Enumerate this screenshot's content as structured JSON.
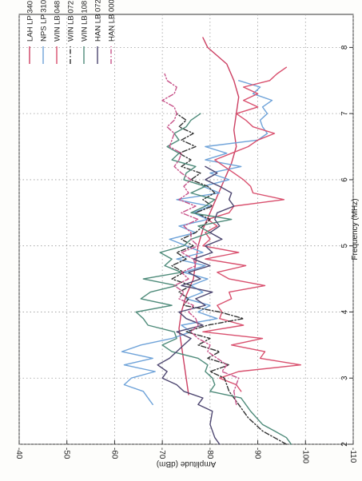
{
  "chart_data": {
    "type": "line",
    "orientation": "rotated-90-clockwise",
    "xlabel": "Frequency (MHz)",
    "ylabel": "Amplitude (dBm)",
    "xlim": [
      2,
      8.5
    ],
    "ylim": [
      -110,
      -40
    ],
    "xticks": [
      "2",
      "3",
      "4",
      "5",
      "6",
      "7",
      "8"
    ],
    "yticks": [
      "-40",
      "-50",
      "-60",
      "-70",
      "-80",
      "-90",
      "-100",
      "-110"
    ],
    "grid": true,
    "legend_position": "top-left",
    "series": [
      {
        "name": "LAH LP 340",
        "color": "#cc3f62",
        "dash": "solid",
        "points": [
          [
            2.75,
            -75.5
          ],
          [
            3.0,
            -75.0
          ],
          [
            3.25,
            -74.5
          ],
          [
            3.5,
            -74.0
          ],
          [
            3.75,
            -73.5
          ],
          [
            4.0,
            -74.0
          ],
          [
            4.25,
            -75.0
          ],
          [
            4.5,
            -76.5
          ],
          [
            4.75,
            -77.0
          ],
          [
            5.0,
            -77.5
          ],
          [
            5.25,
            -78.5
          ],
          [
            5.5,
            -80.0
          ],
          [
            5.75,
            -81.5
          ],
          [
            6.0,
            -83.0
          ],
          [
            6.25,
            -84.5
          ],
          [
            6.5,
            -85.5
          ],
          [
            6.75,
            -85.0
          ],
          [
            7.0,
            -85.5
          ],
          [
            7.25,
            -86.0
          ],
          [
            7.5,
            -85.0
          ],
          [
            7.75,
            -83.5
          ],
          [
            8.0,
            -79.5
          ],
          [
            8.15,
            -78.5
          ]
        ]
      },
      {
        "name": "NPS LP 310",
        "color": "#6fa3d9",
        "dash": "solid",
        "points": [
          [
            2.6,
            -68.0
          ],
          [
            2.7,
            -67.0
          ],
          [
            2.8,
            -66.0
          ],
          [
            2.9,
            -62.0
          ],
          [
            3.0,
            -63.5
          ],
          [
            3.1,
            -68.5
          ],
          [
            3.2,
            -62.0
          ],
          [
            3.3,
            -68.0
          ],
          [
            3.4,
            -61.5
          ],
          [
            3.5,
            -65.5
          ],
          [
            3.6,
            -72.0
          ],
          [
            3.7,
            -76.0
          ],
          [
            3.8,
            -74.0
          ],
          [
            3.9,
            -81.5
          ],
          [
            4.0,
            -77.5
          ],
          [
            4.1,
            -80.0
          ],
          [
            4.2,
            -75.0
          ],
          [
            4.3,
            -78.5
          ],
          [
            4.4,
            -76.0
          ],
          [
            4.5,
            -79.5
          ],
          [
            4.6,
            -74.5
          ],
          [
            4.7,
            -79.0
          ],
          [
            4.8,
            -73.0
          ],
          [
            4.9,
            -78.5
          ],
          [
            5.0,
            -75.0
          ],
          [
            5.1,
            -71.5
          ],
          [
            5.2,
            -77.0
          ],
          [
            5.3,
            -73.5
          ],
          [
            5.4,
            -79.5
          ],
          [
            5.5,
            -76.5
          ],
          [
            5.6,
            -80.0
          ],
          [
            5.7,
            -73.0
          ],
          [
            5.8,
            -82.0
          ],
          [
            5.9,
            -78.5
          ],
          [
            6.0,
            -84.0
          ],
          [
            6.1,
            -80.0
          ],
          [
            6.2,
            -86.5
          ],
          [
            6.3,
            -79.0
          ],
          [
            6.4,
            -83.5
          ],
          [
            6.5,
            -79.0
          ],
          [
            6.6,
            -90.0
          ],
          [
            6.7,
            -92.0
          ],
          [
            6.8,
            -91.0
          ],
          [
            6.9,
            -90.5
          ],
          [
            7.0,
            -92.0
          ],
          [
            7.1,
            -91.0
          ],
          [
            7.2,
            -93.0
          ],
          [
            7.3,
            -89.0
          ],
          [
            7.4,
            -90.5
          ],
          [
            7.5,
            -86.0
          ]
        ]
      },
      {
        "name": "WIN LB 048",
        "color": "#d9506e",
        "dash": "solid",
        "points": [
          [
            2.8,
            -86.5
          ],
          [
            2.9,
            -85.5
          ],
          [
            3.0,
            -82.0
          ],
          [
            3.1,
            -86.0
          ],
          [
            3.2,
            -99.0
          ],
          [
            3.3,
            -90.5
          ],
          [
            3.4,
            -91.5
          ],
          [
            3.5,
            -84.5
          ],
          [
            3.6,
            -91.0
          ],
          [
            3.7,
            -78.5
          ],
          [
            3.8,
            -87.0
          ],
          [
            3.9,
            -82.0
          ],
          [
            4.0,
            -82.5
          ],
          [
            4.1,
            -81.5
          ],
          [
            4.2,
            -84.5
          ],
          [
            4.3,
            -84.0
          ],
          [
            4.4,
            -91.5
          ],
          [
            4.5,
            -84.0
          ],
          [
            4.6,
            -81.5
          ],
          [
            4.7,
            -87.5
          ],
          [
            4.8,
            -79.0
          ],
          [
            4.9,
            -86.0
          ],
          [
            5.0,
            -78.5
          ],
          [
            5.1,
            -80.0
          ],
          [
            5.2,
            -79.0
          ],
          [
            5.3,
            -81.5
          ],
          [
            5.4,
            -79.5
          ],
          [
            5.5,
            -84.0
          ],
          [
            5.6,
            -85.0
          ],
          [
            5.7,
            -95.5
          ],
          [
            5.8,
            -89.0
          ],
          [
            5.9,
            -88.5
          ],
          [
            6.0,
            -87.0
          ],
          [
            6.1,
            -85.0
          ],
          [
            6.2,
            -83.0
          ],
          [
            6.3,
            -81.0
          ],
          [
            6.4,
            -84.5
          ],
          [
            6.5,
            -88.0
          ],
          [
            6.6,
            -90.0
          ],
          [
            6.7,
            -93.5
          ],
          [
            6.8,
            -89.0
          ],
          [
            6.9,
            -87.5
          ],
          [
            7.0,
            -85.5
          ],
          [
            7.1,
            -90.0
          ],
          [
            7.2,
            -87.0
          ],
          [
            7.3,
            -90.0
          ],
          [
            7.4,
            -87.0
          ],
          [
            7.5,
            -92.5
          ],
          [
            7.6,
            -94.0
          ],
          [
            7.7,
            -96.0
          ]
        ]
      },
      {
        "name": "WIN LB 072",
        "color": "#333333",
        "dash": "dashdot",
        "points": [
          [
            2.0,
            -96.0
          ],
          [
            2.2,
            -91.0
          ],
          [
            2.4,
            -88.0
          ],
          [
            2.6,
            -86.0
          ],
          [
            2.8,
            -84.0
          ],
          [
            3.0,
            -83.0
          ],
          [
            3.1,
            -80.0
          ],
          [
            3.2,
            -84.0
          ],
          [
            3.3,
            -79.5
          ],
          [
            3.4,
            -82.0
          ],
          [
            3.5,
            -77.5
          ],
          [
            3.6,
            -80.0
          ],
          [
            3.7,
            -75.0
          ],
          [
            3.8,
            -79.5
          ],
          [
            3.9,
            -87.0
          ],
          [
            4.0,
            -82.0
          ],
          [
            4.1,
            -74.5
          ],
          [
            4.2,
            -75.5
          ],
          [
            4.3,
            -73.5
          ],
          [
            4.4,
            -76.0
          ],
          [
            4.5,
            -72.0
          ],
          [
            4.6,
            -74.5
          ],
          [
            4.7,
            -72.0
          ],
          [
            4.8,
            -75.0
          ],
          [
            4.9,
            -73.0
          ],
          [
            5.0,
            -76.5
          ],
          [
            5.1,
            -74.0
          ],
          [
            5.2,
            -77.0
          ],
          [
            5.3,
            -78.5
          ],
          [
            5.4,
            -80.0
          ],
          [
            5.5,
            -77.0
          ],
          [
            5.6,
            -80.5
          ],
          [
            5.7,
            -78.5
          ],
          [
            5.8,
            -81.0
          ],
          [
            5.9,
            -79.5
          ],
          [
            6.0,
            -76.0
          ],
          [
            6.1,
            -78.0
          ],
          [
            6.2,
            -74.0
          ],
          [
            6.3,
            -76.0
          ],
          [
            6.4,
            -73.5
          ],
          [
            6.5,
            -77.0
          ],
          [
            6.6,
            -74.0
          ],
          [
            6.7,
            -76.5
          ],
          [
            6.8,
            -73.5
          ],
          [
            6.9,
            -75.0
          ],
          [
            7.0,
            -73.0
          ]
        ]
      },
      {
        "name": "WIN LB 108",
        "color": "#4e8b7a",
        "dash": "solid",
        "points": [
          [
            2.0,
            -97.0
          ],
          [
            2.1,
            -96.0
          ],
          [
            2.2,
            -93.5
          ],
          [
            2.3,
            -91.0
          ],
          [
            2.5,
            -88.5
          ],
          [
            2.7,
            -86.5
          ],
          [
            2.8,
            -80.0
          ],
          [
            2.9,
            -81.0
          ],
          [
            3.0,
            -80.5
          ],
          [
            3.1,
            -79.0
          ],
          [
            3.2,
            -79.5
          ],
          [
            3.3,
            -77.5
          ],
          [
            3.4,
            -72.0
          ],
          [
            3.5,
            -70.0
          ],
          [
            3.6,
            -73.0
          ],
          [
            3.7,
            -72.5
          ],
          [
            3.8,
            -67.0
          ],
          [
            3.9,
            -66.0
          ],
          [
            4.0,
            -64.5
          ],
          [
            4.1,
            -72.0
          ],
          [
            4.2,
            -65.5
          ],
          [
            4.3,
            -67.5
          ],
          [
            4.4,
            -73.0
          ],
          [
            4.5,
            -66.0
          ],
          [
            4.6,
            -74.0
          ],
          [
            4.7,
            -70.5
          ],
          [
            4.8,
            -72.0
          ],
          [
            4.9,
            -69.5
          ],
          [
            5.0,
            -74.5
          ],
          [
            5.1,
            -76.0
          ],
          [
            5.2,
            -80.0
          ],
          [
            5.3,
            -77.5
          ],
          [
            5.4,
            -84.5
          ],
          [
            5.5,
            -76.0
          ],
          [
            5.6,
            -79.0
          ],
          [
            5.7,
            -81.0
          ],
          [
            5.8,
            -76.0
          ],
          [
            5.9,
            -79.0
          ],
          [
            6.0,
            -74.5
          ],
          [
            6.1,
            -75.0
          ],
          [
            6.2,
            -77.0
          ],
          [
            6.3,
            -72.0
          ],
          [
            6.4,
            -73.5
          ],
          [
            6.5,
            -71.0
          ],
          [
            6.6,
            -73.5
          ],
          [
            6.7,
            -72.5
          ],
          [
            6.8,
            -75.0
          ],
          [
            6.9,
            -76.0
          ],
          [
            7.0,
            -78.0
          ]
        ]
      },
      {
        "name": "HAN LB 072",
        "color": "#4d4670",
        "dash": "solid",
        "points": [
          [
            2.0,
            -82.0
          ],
          [
            2.1,
            -81.0
          ],
          [
            2.3,
            -80.0
          ],
          [
            2.5,
            -80.5
          ],
          [
            2.6,
            -77.5
          ],
          [
            2.7,
            -78.5
          ],
          [
            2.8,
            -74.5
          ],
          [
            2.9,
            -73.0
          ],
          [
            3.0,
            -70.0
          ],
          [
            3.1,
            -71.0
          ],
          [
            3.2,
            -69.0
          ],
          [
            3.3,
            -71.5
          ],
          [
            3.4,
            -73.0
          ],
          [
            3.5,
            -74.5
          ],
          [
            3.6,
            -76.0
          ],
          [
            3.7,
            -73.0
          ],
          [
            3.8,
            -78.5
          ],
          [
            3.9,
            -75.0
          ],
          [
            4.0,
            -73.5
          ],
          [
            4.1,
            -79.0
          ],
          [
            4.2,
            -77.0
          ],
          [
            4.3,
            -80.5
          ],
          [
            4.4,
            -74.0
          ],
          [
            4.5,
            -78.0
          ],
          [
            4.6,
            -75.5
          ],
          [
            4.7,
            -80.0
          ],
          [
            4.8,
            -76.5
          ],
          [
            4.9,
            -80.5
          ],
          [
            5.0,
            -79.0
          ],
          [
            5.1,
            -82.5
          ],
          [
            5.2,
            -80.0
          ],
          [
            5.3,
            -82.0
          ],
          [
            5.4,
            -81.0
          ],
          [
            5.5,
            -81.5
          ],
          [
            5.6,
            -85.0
          ],
          [
            5.7,
            -84.0
          ],
          [
            5.8,
            -84.5
          ],
          [
            5.9,
            -82.0
          ],
          [
            6.0,
            -79.0
          ],
          [
            6.1,
            -81.5
          ],
          [
            6.2,
            -79.0
          ]
        ]
      },
      {
        "name": "HAN LB 000",
        "color": "#c8548a",
        "dash": "dashdot",
        "points": [
          [
            2.6,
            -85.5
          ],
          [
            2.8,
            -85.0
          ],
          [
            3.0,
            -86.0
          ],
          [
            3.1,
            -82.5
          ],
          [
            3.2,
            -83.5
          ],
          [
            3.3,
            -81.5
          ],
          [
            3.4,
            -79.5
          ],
          [
            3.5,
            -80.0
          ],
          [
            3.6,
            -77.5
          ],
          [
            3.7,
            -76.0
          ],
          [
            3.8,
            -77.5
          ],
          [
            3.9,
            -77.0
          ],
          [
            4.0,
            -75.5
          ],
          [
            4.1,
            -76.5
          ],
          [
            4.2,
            -73.5
          ],
          [
            4.3,
            -74.5
          ],
          [
            4.4,
            -72.5
          ],
          [
            4.5,
            -75.5
          ],
          [
            4.6,
            -74.0
          ],
          [
            4.7,
            -77.0
          ],
          [
            4.8,
            -76.5
          ],
          [
            4.9,
            -74.0
          ],
          [
            5.0,
            -77.5
          ],
          [
            5.1,
            -76.0
          ],
          [
            5.2,
            -76.0
          ],
          [
            5.3,
            -74.5
          ],
          [
            5.4,
            -77.5
          ],
          [
            5.5,
            -74.0
          ],
          [
            5.6,
            -77.0
          ],
          [
            5.7,
            -73.5
          ],
          [
            5.8,
            -75.5
          ],
          [
            5.9,
            -74.5
          ],
          [
            6.0,
            -76.0
          ],
          [
            6.1,
            -74.0
          ],
          [
            6.2,
            -72.5
          ],
          [
            6.3,
            -73.5
          ],
          [
            6.4,
            -74.0
          ],
          [
            6.5,
            -71.5
          ],
          [
            6.6,
            -72.0
          ],
          [
            6.7,
            -72.5
          ],
          [
            6.8,
            -71.0
          ],
          [
            6.9,
            -72.5
          ],
          [
            7.0,
            -73.0
          ],
          [
            7.1,
            -72.5
          ],
          [
            7.2,
            -70.0
          ],
          [
            7.3,
            -72.5
          ],
          [
            7.4,
            -73.0
          ],
          [
            7.5,
            -71.0
          ],
          [
            7.6,
            -70.5
          ]
        ]
      }
    ]
  }
}
